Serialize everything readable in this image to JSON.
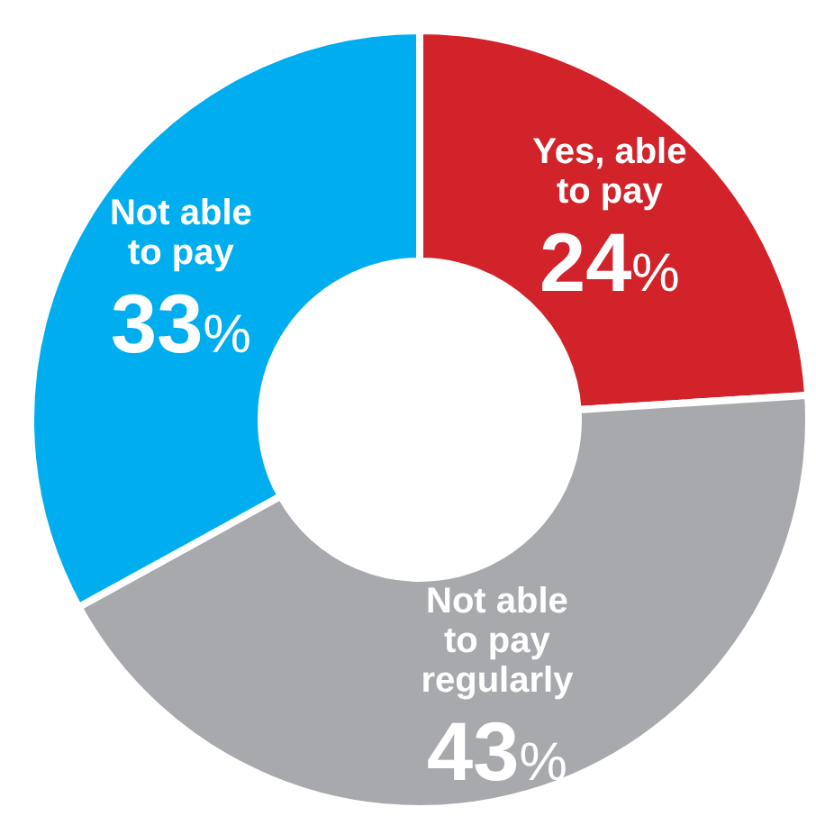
{
  "chart_data": {
    "type": "donut",
    "categories": [
      "Yes, able to pay",
      "Not able to pay regularly",
      "Not able to pay"
    ],
    "values": [
      24,
      43,
      33
    ],
    "colors": [
      "#d2232a",
      "#a7a9ac",
      "#00aeef"
    ],
    "value_labels": [
      "24%",
      "43%",
      "33%"
    ]
  }
}
